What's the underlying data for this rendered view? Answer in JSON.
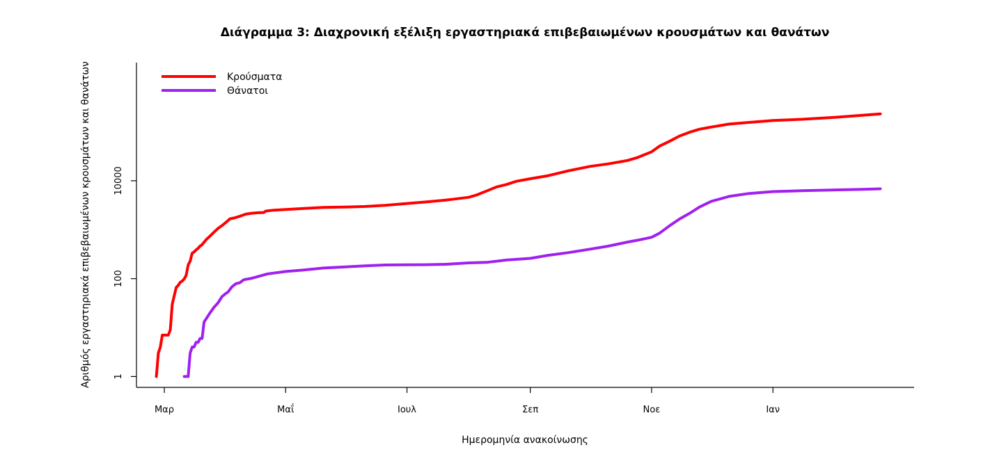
{
  "chart_data": {
    "type": "line",
    "title": "Διάγραμμα 3: Διαχρονική εξέλιξη εργαστηριακά επιβεβαιωμένων κρουσμάτων και θανάτων",
    "xlabel": "Ημερομηνία ανακοίνωσης",
    "ylabel": "Αριθμός εργαστηριακά επιβεβαιωμένων κρουσμάτων και θανάτων",
    "x_ticks": [
      {
        "date": "2020-03-01",
        "label": "Μαρ"
      },
      {
        "date": "2020-05-01",
        "label": "Μαΐ"
      },
      {
        "date": "2020-07-01",
        "label": "Ιουλ"
      },
      {
        "date": "2020-09-01",
        "label": "Σεπ"
      },
      {
        "date": "2020-11-01",
        "label": "Νοε"
      },
      {
        "date": "2021-01-01",
        "label": "Ιαν"
      }
    ],
    "y_scale": "log",
    "y_ticks": [
      {
        "value": 1,
        "label": "1"
      },
      {
        "value": 100,
        "label": "100"
      },
      {
        "value": 10000,
        "label": "10000"
      }
    ],
    "xlim": [
      "2020-02-16",
      "2021-03-13"
    ],
    "ylim": [
      0.6,
      2600000
    ],
    "legend": {
      "placement": "top-left"
    },
    "series": [
      {
        "name": "Κρούσματα",
        "color": "#ff0000",
        "points": [
          [
            "2020-02-26",
            1
          ],
          [
            "2020-02-27",
            3
          ],
          [
            "2020-02-28",
            4
          ],
          [
            "2020-02-29",
            7
          ],
          [
            "2020-03-01",
            7
          ],
          [
            "2020-03-02",
            7
          ],
          [
            "2020-03-03",
            7
          ],
          [
            "2020-03-04",
            9
          ],
          [
            "2020-03-05",
            30
          ],
          [
            "2020-03-06",
            45
          ],
          [
            "2020-03-07",
            66
          ],
          [
            "2020-03-08",
            73
          ],
          [
            "2020-03-09",
            84
          ],
          [
            "2020-03-10",
            89
          ],
          [
            "2020-03-11",
            99
          ],
          [
            "2020-03-12",
            117
          ],
          [
            "2020-03-13",
            190
          ],
          [
            "2020-03-14",
            228
          ],
          [
            "2020-03-15",
            331
          ],
          [
            "2020-03-16",
            352
          ],
          [
            "2020-03-17",
            387
          ],
          [
            "2020-03-18",
            418
          ],
          [
            "2020-03-19",
            464
          ],
          [
            "2020-03-20",
            495
          ],
          [
            "2020-03-22",
            624
          ],
          [
            "2020-03-24",
            743
          ],
          [
            "2020-03-26",
            892
          ],
          [
            "2020-03-28",
            1061
          ],
          [
            "2020-03-30",
            1212
          ],
          [
            "2020-04-01",
            1415
          ],
          [
            "2020-04-03",
            1673
          ],
          [
            "2020-04-05",
            1735
          ],
          [
            "2020-04-08",
            1884
          ],
          [
            "2020-04-11",
            2081
          ],
          [
            "2020-04-14",
            2170
          ],
          [
            "2020-04-17",
            2224
          ],
          [
            "2020-04-20",
            2245
          ],
          [
            "2020-04-21",
            2401
          ],
          [
            "2020-04-25",
            2506
          ],
          [
            "2020-05-01",
            2591
          ],
          [
            "2020-05-10",
            2710
          ],
          [
            "2020-05-20",
            2850
          ],
          [
            "2020-06-01",
            2917
          ],
          [
            "2020-06-10",
            2980
          ],
          [
            "2020-06-20",
            3148
          ],
          [
            "2020-07-01",
            3432
          ],
          [
            "2020-07-10",
            3672
          ],
          [
            "2020-07-20",
            4007
          ],
          [
            "2020-07-25",
            4227
          ],
          [
            "2020-08-01",
            4587
          ],
          [
            "2020-08-05",
            5123
          ],
          [
            "2020-08-10",
            6177
          ],
          [
            "2020-08-15",
            7472
          ],
          [
            "2020-08-20",
            8381
          ],
          [
            "2020-08-25",
            9741
          ],
          [
            "2020-09-01",
            11000
          ],
          [
            "2020-09-10",
            12720
          ],
          [
            "2020-09-20",
            15928
          ],
          [
            "2020-10-01",
            19613
          ],
          [
            "2020-10-10",
            22078
          ],
          [
            "2020-10-20",
            26000
          ],
          [
            "2020-10-25",
            30000
          ],
          [
            "2020-11-01",
            39000
          ],
          [
            "2020-11-05",
            51000
          ],
          [
            "2020-11-10",
            64000
          ],
          [
            "2020-11-15",
            82000
          ],
          [
            "2020-11-20",
            98000
          ],
          [
            "2020-11-25",
            113000
          ],
          [
            "2020-12-01",
            125000
          ],
          [
            "2020-12-10",
            144000
          ],
          [
            "2020-12-20",
            156000
          ],
          [
            "2021-01-01",
            171000
          ],
          [
            "2021-01-15",
            180000
          ],
          [
            "2021-02-01",
            198000
          ],
          [
            "2021-02-15",
            218000
          ],
          [
            "2021-02-24",
            232000
          ]
        ]
      },
      {
        "name": "Θάνατοι",
        "color": "#a020f0",
        "points": [
          [
            "2020-03-11",
            1
          ],
          [
            "2020-03-12",
            1
          ],
          [
            "2020-03-13",
            1
          ],
          [
            "2020-03-14",
            3
          ],
          [
            "2020-03-15",
            4
          ],
          [
            "2020-03-16",
            4
          ],
          [
            "2020-03-17",
            5
          ],
          [
            "2020-03-18",
            5
          ],
          [
            "2020-03-19",
            6
          ],
          [
            "2020-03-20",
            6
          ],
          [
            "2020-03-21",
            13
          ],
          [
            "2020-03-22",
            15
          ],
          [
            "2020-03-24",
            20
          ],
          [
            "2020-03-26",
            26
          ],
          [
            "2020-03-28",
            32
          ],
          [
            "2020-03-30",
            43
          ],
          [
            "2020-04-01",
            50
          ],
          [
            "2020-04-02",
            53
          ],
          [
            "2020-04-04",
            68
          ],
          [
            "2020-04-06",
            79
          ],
          [
            "2020-04-08",
            83
          ],
          [
            "2020-04-10",
            95
          ],
          [
            "2020-04-14",
            102
          ],
          [
            "2020-04-18",
            113
          ],
          [
            "2020-04-22",
            125
          ],
          [
            "2020-05-01",
            140
          ],
          [
            "2020-05-10",
            150
          ],
          [
            "2020-05-20",
            165
          ],
          [
            "2020-06-01",
            175
          ],
          [
            "2020-06-10",
            183
          ],
          [
            "2020-06-20",
            190
          ],
          [
            "2020-07-01",
            192
          ],
          [
            "2020-07-10",
            193
          ],
          [
            "2020-07-20",
            196
          ],
          [
            "2020-08-01",
            210
          ],
          [
            "2020-08-10",
            215
          ],
          [
            "2020-08-20",
            240
          ],
          [
            "2020-09-01",
            260
          ],
          [
            "2020-09-10",
            300
          ],
          [
            "2020-09-20",
            340
          ],
          [
            "2020-10-01",
            400
          ],
          [
            "2020-10-10",
            460
          ],
          [
            "2020-10-20",
            560
          ],
          [
            "2020-10-25",
            610
          ],
          [
            "2020-11-01",
            700
          ],
          [
            "2020-11-05",
            850
          ],
          [
            "2020-11-10",
            1200
          ],
          [
            "2020-11-15",
            1650
          ],
          [
            "2020-11-20",
            2150
          ],
          [
            "2020-11-25",
            2900
          ],
          [
            "2020-12-01",
            3800
          ],
          [
            "2020-12-10",
            4800
          ],
          [
            "2020-12-20",
            5500
          ],
          [
            "2021-01-01",
            6000
          ],
          [
            "2021-01-15",
            6250
          ],
          [
            "2021-02-01",
            6500
          ],
          [
            "2021-02-15",
            6700
          ],
          [
            "2021-02-24",
            6850
          ]
        ]
      }
    ]
  }
}
